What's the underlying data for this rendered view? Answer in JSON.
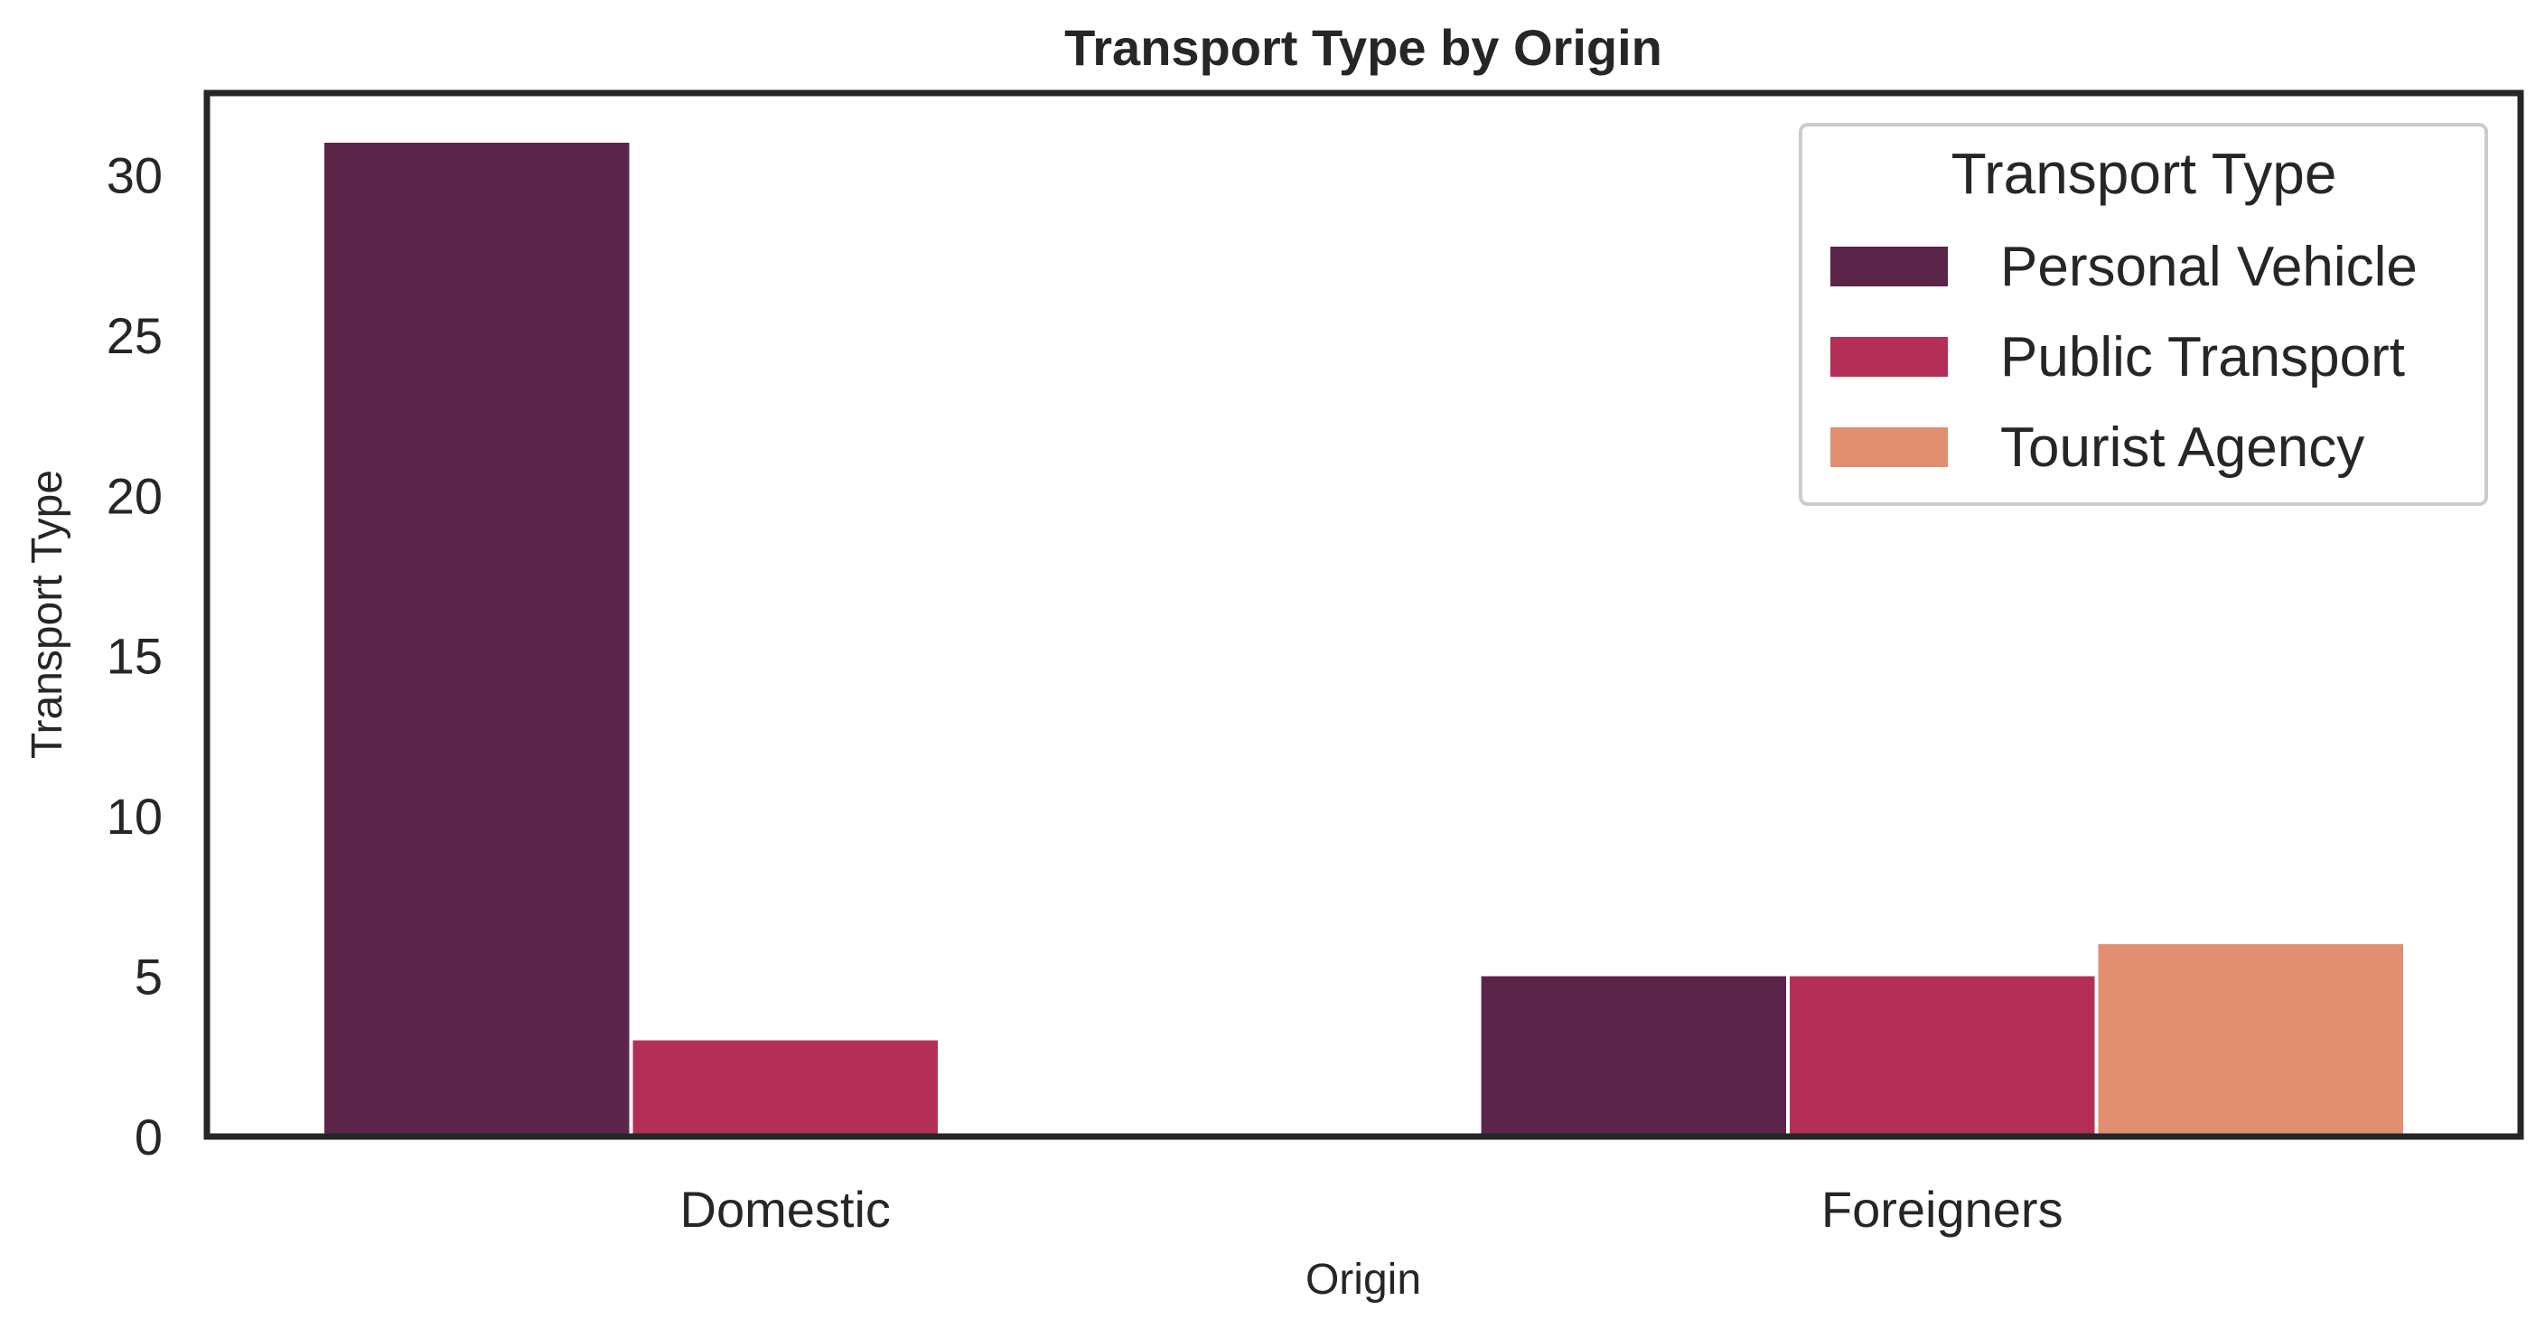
{
  "chart_data": {
    "type": "bar",
    "title": "Transport Type by Origin",
    "xlabel": "Origin",
    "ylabel": "Transport Type",
    "categories": [
      "Domestic",
      "Foreigners"
    ],
    "series": [
      {
        "name": "Personal Vehicle",
        "values": [
          31,
          5
        ],
        "color": "#5a2549"
      },
      {
        "name": "Public Transport",
        "values": [
          3,
          5
        ],
        "color": "#b32f57"
      },
      {
        "name": "Tourist Agency",
        "values": [
          0,
          6
        ],
        "color": "#e28e70"
      }
    ],
    "ylim": [
      0,
      32.55
    ],
    "yticks": [
      0,
      5,
      10,
      15,
      20,
      25,
      30
    ],
    "legend": {
      "title": "Transport Type",
      "position": "top-right"
    },
    "grid": false
  }
}
